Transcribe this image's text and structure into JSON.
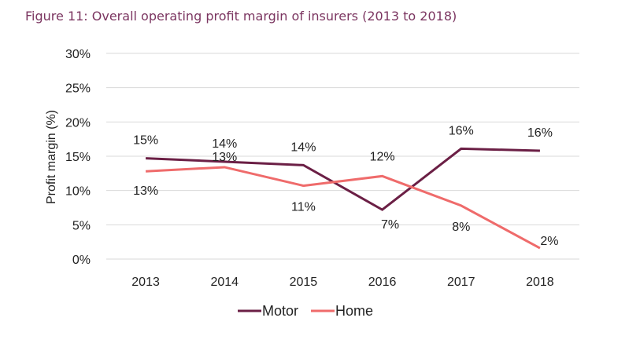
{
  "chart_data": {
    "type": "line",
    "title": "Figure 11: Overall operating profit margin of insurers (2013 to 2018)",
    "xlabel": "",
    "ylabel": "Profit margin (%)",
    "categories": [
      "2013",
      "2014",
      "2015",
      "2016",
      "2017",
      "2018"
    ],
    "ylim": [
      0,
      30
    ],
    "yticks": [
      "0%",
      "5%",
      "10%",
      "15%",
      "20%",
      "25%",
      "30%"
    ],
    "grid": true,
    "legend": "bottom",
    "series": [
      {
        "name": "Motor",
        "color": "#6b1f45",
        "values": [
          14.7,
          14.2,
          13.7,
          7.2,
          16.1,
          15.8
        ],
        "labels": [
          "15%",
          "14%",
          "14%",
          "7%",
          "16%",
          "16%"
        ]
      },
      {
        "name": "Home",
        "color": "#ef6b6b",
        "values": [
          12.8,
          13.4,
          10.7,
          12.1,
          7.8,
          1.6
        ],
        "labels": [
          "13%",
          "13%",
          "11%",
          "12%",
          "8%",
          "2%"
        ]
      }
    ]
  }
}
